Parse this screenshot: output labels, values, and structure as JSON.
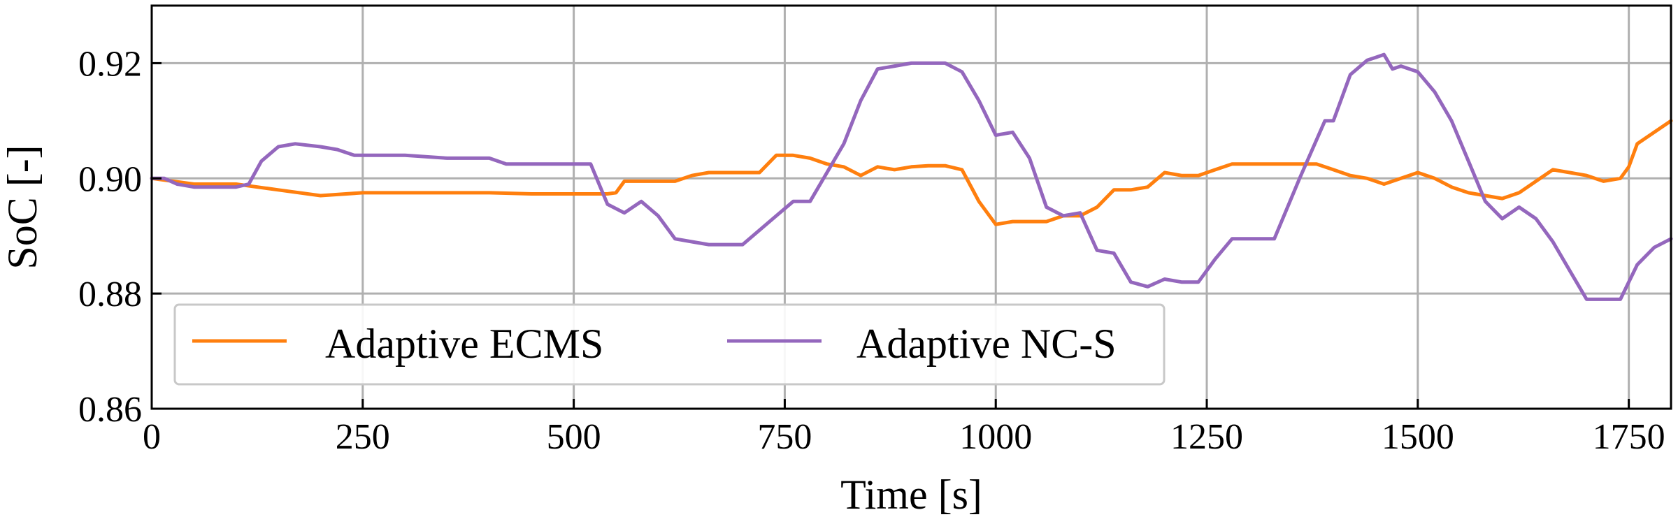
{
  "chart_data": {
    "type": "line",
    "title": "",
    "xlabel": "Time [s]",
    "ylabel": "SoC [-]",
    "xlim": [
      0,
      1800
    ],
    "ylim": [
      0.86,
      0.93
    ],
    "xticks": [
      0,
      250,
      500,
      750,
      1000,
      1250,
      1500,
      1750
    ],
    "xtick_labels": [
      "0",
      "250",
      "500",
      "750",
      "1000",
      "1250",
      "1500",
      "1750"
    ],
    "yticks": [
      0.86,
      0.88,
      0.9,
      0.92
    ],
    "ytick_labels": [
      "0.86",
      "0.88",
      "0.90",
      "0.92"
    ],
    "grid": true,
    "legend_position": "lower-left",
    "series": [
      {
        "name": "Adaptive ECMS",
        "color": "#ff7f0e",
        "x": [
          0,
          50,
          100,
          150,
          200,
          250,
          300,
          350,
          400,
          450,
          500,
          540,
          550,
          560,
          580,
          600,
          620,
          640,
          660,
          680,
          700,
          720,
          740,
          760,
          780,
          800,
          820,
          840,
          860,
          880,
          900,
          920,
          940,
          960,
          980,
          1000,
          1020,
          1060,
          1080,
          1100,
          1120,
          1140,
          1160,
          1180,
          1200,
          1220,
          1240,
          1260,
          1280,
          1300,
          1320,
          1380,
          1400,
          1420,
          1440,
          1460,
          1480,
          1500,
          1520,
          1540,
          1560,
          1580,
          1600,
          1620,
          1640,
          1660,
          1680,
          1700,
          1720,
          1740,
          1750,
          1760,
          1780,
          1800
        ],
        "y": [
          0.9,
          0.899,
          0.899,
          0.898,
          0.897,
          0.8975,
          0.8975,
          0.8975,
          0.8975,
          0.8973,
          0.8973,
          0.8973,
          0.8975,
          0.8995,
          0.8995,
          0.8995,
          0.8995,
          0.9005,
          0.901,
          0.901,
          0.901,
          0.901,
          0.904,
          0.904,
          0.9035,
          0.9025,
          0.902,
          0.9005,
          0.902,
          0.9015,
          0.902,
          0.9022,
          0.9022,
          0.9015,
          0.896,
          0.892,
          0.8925,
          0.8925,
          0.8935,
          0.8935,
          0.895,
          0.898,
          0.898,
          0.8985,
          0.901,
          0.9005,
          0.9005,
          0.9015,
          0.9025,
          0.9025,
          0.9025,
          0.9025,
          0.9015,
          0.9005,
          0.9,
          0.899,
          0.9,
          0.901,
          0.9,
          0.8985,
          0.8975,
          0.897,
          0.8965,
          0.8975,
          0.8995,
          0.9015,
          0.901,
          0.9005,
          0.8995,
          0.9,
          0.902,
          0.906,
          0.908,
          0.91
        ]
      },
      {
        "name": "Adaptive NC-S",
        "color": "#9467bd",
        "x": [
          0,
          15,
          30,
          50,
          70,
          100,
          115,
          130,
          150,
          170,
          200,
          220,
          240,
          260,
          300,
          350,
          400,
          420,
          450,
          500,
          520,
          540,
          560,
          580,
          600,
          620,
          640,
          660,
          680,
          700,
          720,
          740,
          760,
          780,
          800,
          820,
          840,
          860,
          880,
          900,
          920,
          940,
          960,
          980,
          1000,
          1020,
          1040,
          1060,
          1080,
          1100,
          1120,
          1140,
          1160,
          1180,
          1200,
          1220,
          1240,
          1260,
          1280,
          1300,
          1330,
          1360,
          1390,
          1400,
          1420,
          1440,
          1450,
          1460,
          1470,
          1480,
          1500,
          1520,
          1540,
          1560,
          1580,
          1600,
          1620,
          1640,
          1660,
          1680,
          1700,
          1720,
          1740,
          1760,
          1780,
          1800
        ],
        "y": [
          0.9,
          0.9,
          0.899,
          0.8985,
          0.8985,
          0.8985,
          0.899,
          0.903,
          0.9055,
          0.906,
          0.9055,
          0.905,
          0.904,
          0.904,
          0.904,
          0.9035,
          0.9035,
          0.9025,
          0.9025,
          0.9025,
          0.9025,
          0.8955,
          0.894,
          0.896,
          0.8935,
          0.8895,
          0.889,
          0.8885,
          0.8885,
          0.8885,
          0.891,
          0.8935,
          0.896,
          0.896,
          0.901,
          0.906,
          0.9135,
          0.919,
          0.9195,
          0.92,
          0.92,
          0.92,
          0.9185,
          0.9135,
          0.9075,
          0.908,
          0.9035,
          0.895,
          0.8935,
          0.894,
          0.8875,
          0.887,
          0.882,
          0.8812,
          0.8825,
          0.882,
          0.882,
          0.886,
          0.8895,
          0.8895,
          0.8895,
          0.9,
          0.91,
          0.91,
          0.918,
          0.9205,
          0.921,
          0.9215,
          0.919,
          0.9195,
          0.9185,
          0.915,
          0.91,
          0.903,
          0.896,
          0.893,
          0.895,
          0.893,
          0.889,
          0.884,
          0.879,
          0.879,
          0.879,
          0.885,
          0.888,
          0.8895
        ]
      }
    ]
  }
}
